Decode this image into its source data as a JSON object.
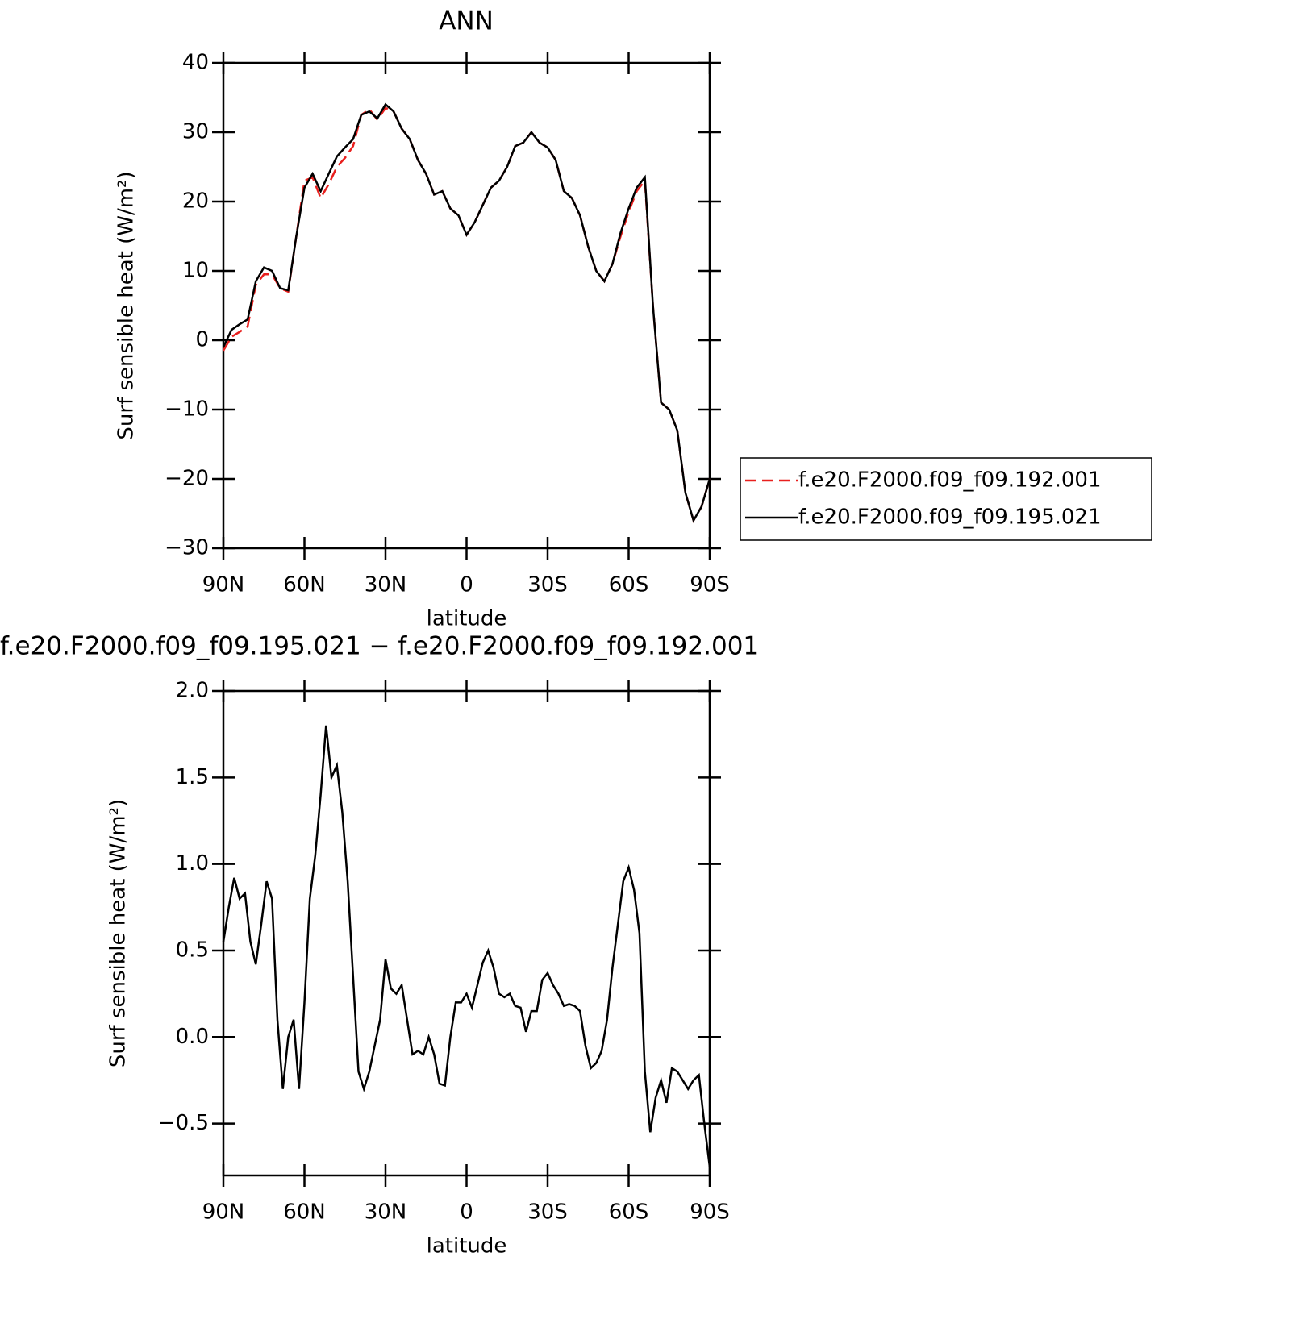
{
  "chart_data": [
    {
      "type": "line",
      "title": "ANN",
      "x_label": "latitude",
      "y_label": "Surf sensible heat (W/m²)",
      "x": [
        90,
        87,
        84,
        81,
        78,
        75,
        72,
        69,
        66,
        63,
        60,
        57,
        54,
        51,
        48,
        45,
        42,
        39,
        36,
        33,
        30,
        27,
        24,
        21,
        18,
        15,
        12,
        9,
        6,
        3,
        0,
        -3,
        -6,
        -9,
        -12,
        -15,
        -18,
        -21,
        -24,
        -27,
        -30,
        -33,
        -36,
        -39,
        -42,
        -45,
        -48,
        -51,
        -54,
        -57,
        -60,
        -63,
        -66,
        -69,
        -72,
        -75,
        -78,
        -81,
        -84,
        -87,
        -90
      ],
      "series": [
        {
          "name": "f.e20.F2000.f09_f09.192.001",
          "color": "#e8201e",
          "dash": "dashed",
          "values": [
            -1.5,
            0.5,
            1.2,
            2,
            8,
            9.5,
            9.5,
            7.5,
            7,
            15,
            23,
            23.5,
            20.5,
            22.5,
            25,
            26.3,
            28,
            32.5,
            33.3,
            31.8,
            33.5,
            33,
            30.5,
            29,
            26,
            24,
            21,
            21.5,
            19,
            18,
            15.2,
            17,
            19.5,
            22,
            23,
            25,
            28,
            28.5,
            30,
            28.5,
            27.8,
            26,
            21.5,
            20.5,
            18,
            13.5,
            10,
            8.5,
            11,
            15,
            18.5,
            21.5,
            23,
            5,
            -9,
            -10,
            -13,
            -22,
            -26,
            -24,
            -20
          ]
        },
        {
          "name": "f.e20.F2000.f09_f09.195.021",
          "color": "#000000",
          "dash": "solid",
          "values": [
            -1,
            1.5,
            2.3,
            3,
            8.5,
            10.5,
            10,
            7.5,
            7.2,
            15,
            22,
            24,
            21.5,
            24,
            26.5,
            27.8,
            29,
            32.5,
            33,
            32,
            34,
            33,
            30.5,
            29,
            26,
            24,
            21,
            21.5,
            19,
            18,
            15.2,
            17,
            19.5,
            22,
            23,
            25,
            28,
            28.5,
            30,
            28.5,
            27.8,
            26,
            21.5,
            20.5,
            18,
            13.5,
            10,
            8.5,
            11,
            15.5,
            19,
            22,
            23.5,
            5,
            -9,
            -10,
            -13,
            -22,
            -26,
            -24,
            -20
          ]
        }
      ],
      "xlim": [
        90,
        -90
      ],
      "xticks": [
        {
          "value": 90,
          "label": "90N"
        },
        {
          "value": 60,
          "label": "60N"
        },
        {
          "value": 30,
          "label": "30N"
        },
        0,
        {
          "value": -30,
          "label": "30S"
        },
        {
          "value": -60,
          "label": "60S"
        },
        {
          "value": -90,
          "label": "90S"
        }
      ],
      "ylim": [
        -30,
        40
      ],
      "yticks": [
        {
          "value": -30,
          "label": "−30"
        },
        {
          "value": -20,
          "label": "−20"
        },
        {
          "value": -10,
          "label": "−10"
        },
        0,
        10,
        20,
        30,
        40
      ],
      "legend": "right"
    },
    {
      "type": "line",
      "title": "f.e20.F2000.f09_f09.195.021 − f.e20.F2000.f09_f09.192.001",
      "x_label": "latitude",
      "y_label": "Surf sensible heat (W/m²)",
      "x": [
        90,
        88,
        86,
        84,
        82,
        80,
        78,
        76,
        74,
        72,
        70,
        68,
        66,
        64,
        62,
        60,
        58,
        56,
        54,
        52,
        50,
        48,
        46,
        44,
        42,
        40,
        38,
        36,
        34,
        32,
        30,
        28,
        26,
        24,
        22,
        20,
        18,
        16,
        14,
        12,
        10,
        8,
        6,
        4,
        2,
        0,
        -2,
        -4,
        -6,
        -8,
        -10,
        -12,
        -14,
        -16,
        -18,
        -20,
        -22,
        -24,
        -26,
        -28,
        -30,
        -32,
        -34,
        -36,
        -38,
        -40,
        -42,
        -44,
        -46,
        -48,
        -50,
        -52,
        -54,
        -56,
        -58,
        -60,
        -62,
        -64,
        -66,
        -68,
        -70,
        -72,
        -74,
        -76,
        -78,
        -80,
        -82,
        -84,
        -86,
        -88,
        -90
      ],
      "series": [
        {
          "color": "#000000",
          "dash": "solid",
          "values": [
            0.55,
            0.75,
            0.92,
            0.8,
            0.83,
            0.55,
            0.42,
            0.65,
            0.9,
            0.8,
            0.1,
            -0.3,
            0.0,
            0.1,
            -0.3,
            0.2,
            0.8,
            1.05,
            1.4,
            1.8,
            1.5,
            1.57,
            1.3,
            0.9,
            0.35,
            -0.2,
            -0.3,
            -0.2,
            -0.05,
            0.1,
            0.45,
            0.28,
            0.25,
            0.3,
            0.1,
            -0.1,
            -0.08,
            -0.1,
            0.0,
            -0.1,
            -0.27,
            -0.28,
            0.0,
            0.2,
            0.2,
            0.25,
            0.17,
            0.3,
            0.43,
            0.5,
            0.4,
            0.25,
            0.23,
            0.25,
            0.18,
            0.17,
            0.03,
            0.15,
            0.15,
            0.33,
            0.37,
            0.3,
            0.25,
            0.18,
            0.19,
            0.18,
            0.15,
            -0.05,
            -0.18,
            -0.15,
            -0.08,
            0.1,
            0.4,
            0.65,
            0.9,
            0.98,
            0.85,
            0.6,
            -0.2,
            -0.55,
            -0.35,
            -0.25,
            -0.38,
            -0.18,
            -0.2,
            -0.25,
            -0.3,
            -0.25,
            -0.22,
            -0.5,
            -0.75
          ]
        }
      ],
      "xlim": [
        90,
        -90
      ],
      "xticks": [
        {
          "value": 90,
          "label": "90N"
        },
        {
          "value": 60,
          "label": "60N"
        },
        {
          "value": 30,
          "label": "30N"
        },
        0,
        {
          "value": -30,
          "label": "30S"
        },
        {
          "value": -60,
          "label": "60S"
        },
        {
          "value": -90,
          "label": "90S"
        }
      ],
      "ylim": [
        -0.8,
        2.0
      ],
      "yticks": [
        {
          "value": -0.5,
          "label": "−0.5"
        },
        {
          "value": 0,
          "label": "0.0"
        },
        0.5,
        {
          "value": 1,
          "label": "1.0"
        },
        1.5,
        {
          "value": 2,
          "label": "2.0"
        }
      ]
    }
  ]
}
